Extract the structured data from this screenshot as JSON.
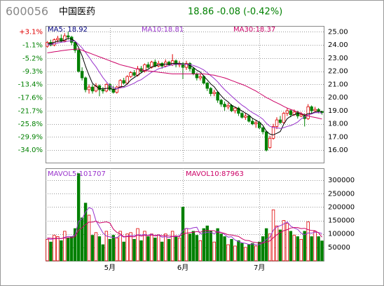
{
  "chart_data": [
    {
      "type": "candlestick",
      "title": "600056",
      "subtitle": "中国医药",
      "quote": "18.86 -0.08 (-0.42%)",
      "up_color": "#e00000",
      "down_color": "#008000",
      "open": [
        23.9,
        24.2,
        24.0,
        24.4,
        24.5,
        24.3,
        24.7,
        24.6,
        24.2,
        23.6,
        22.0,
        21.5,
        20.6,
        20.8,
        20.5,
        20.9,
        20.6,
        20.5,
        21.0,
        20.6,
        20.4,
        20.8,
        21.3,
        21.1,
        21.6,
        21.9,
        21.7,
        22.2,
        22.0,
        22.5,
        22.3,
        22.7,
        22.4,
        22.6,
        22.4,
        22.7,
        22.5,
        22.8,
        22.5,
        22.6,
        22.3,
        22.6,
        22.2,
        21.8,
        21.5,
        21.6,
        21.1,
        20.7,
        20.3,
        20.4,
        19.8,
        19.5,
        19.3,
        19.4,
        19.0,
        19.2,
        18.8,
        18.5,
        18.6,
        18.2,
        18.0,
        18.1,
        17.7,
        17.4,
        16.2,
        16.9,
        17.8,
        18.3,
        18.1,
        18.8,
        19.0,
        18.7,
        18.9,
        18.6,
        18.7,
        18.4,
        19.3,
        19.0,
        19.1,
        18.94
      ],
      "high": [
        24.3,
        24.4,
        24.5,
        24.7,
        24.8,
        24.9,
        25.0,
        24.7,
        24.3,
        23.7,
        22.3,
        21.6,
        21.0,
        21.0,
        21.1,
        21.0,
        20.8,
        21.1,
        21.1,
        20.9,
        20.9,
        21.4,
        21.5,
        21.7,
        22.0,
        22.1,
        22.4,
        22.4,
        22.6,
        22.7,
        22.8,
        22.9,
        22.8,
        22.7,
        22.9,
        22.8,
        23.3,
        22.9,
        22.8,
        22.7,
        22.8,
        22.7,
        22.3,
        21.9,
        21.8,
        21.7,
        21.2,
        20.8,
        20.6,
        20.5,
        19.9,
        19.7,
        19.6,
        19.5,
        19.3,
        19.3,
        18.9,
        18.8,
        18.7,
        18.4,
        18.3,
        18.2,
        17.8,
        17.5,
        17.1,
        18.0,
        18.5,
        18.6,
        18.9,
        19.2,
        19.1,
        19.1,
        19.0,
        18.9,
        18.8,
        19.5,
        19.4,
        19.3,
        19.2,
        19.0
      ],
      "low": [
        23.8,
        23.9,
        23.9,
        24.2,
        24.2,
        24.2,
        24.4,
        24.0,
        23.4,
        21.9,
        21.3,
        20.4,
        20.3,
        20.3,
        20.4,
        20.1,
        20.3,
        20.4,
        20.5,
        20.3,
        20.3,
        20.7,
        21.0,
        21.0,
        21.5,
        21.6,
        21.6,
        21.9,
        21.9,
        22.2,
        22.2,
        22.3,
        22.3,
        22.2,
        22.3,
        22.4,
        22.4,
        22.3,
        22.3,
        21.4,
        22.1,
        22.0,
        21.7,
        21.3,
        21.3,
        21.0,
        20.5,
        20.1,
        20.1,
        19.6,
        19.3,
        19.0,
        19.1,
        18.9,
        18.8,
        18.6,
        18.4,
        18.3,
        18.1,
        17.9,
        17.7,
        17.6,
        17.2,
        15.9,
        16.1,
        16.8,
        17.6,
        18.0,
        18.0,
        18.6,
        18.5,
        18.6,
        18.4,
        18.5,
        17.8,
        18.3,
        18.8,
        18.9,
        18.8,
        18.7
      ],
      "close": [
        24.2,
        24.0,
        24.4,
        24.5,
        24.3,
        24.7,
        24.6,
        24.2,
        23.6,
        22.0,
        21.5,
        20.6,
        20.8,
        20.5,
        20.9,
        20.6,
        20.5,
        21.0,
        20.6,
        20.4,
        20.8,
        21.3,
        21.1,
        21.6,
        21.9,
        21.7,
        22.2,
        22.0,
        22.5,
        22.3,
        22.7,
        22.4,
        22.6,
        22.4,
        22.7,
        22.5,
        22.8,
        22.5,
        22.6,
        22.3,
        22.6,
        22.2,
        21.8,
        21.5,
        21.6,
        21.1,
        20.7,
        20.3,
        20.4,
        19.8,
        19.5,
        19.3,
        19.4,
        19.0,
        19.2,
        18.8,
        18.5,
        18.6,
        18.2,
        18.0,
        18.1,
        17.7,
        17.4,
        16.0,
        16.9,
        17.8,
        18.3,
        18.1,
        18.8,
        19.0,
        18.7,
        18.9,
        18.6,
        18.7,
        18.4,
        19.3,
        19.0,
        19.1,
        18.94,
        18.86
      ],
      "lines": [
        {
          "name": "MA5: 18.92",
          "color": "#000000",
          "values": [
            24.1,
            24.1,
            24.2,
            24.3,
            24.28,
            24.38,
            24.5,
            24.46,
            24.28,
            23.82,
            23.18,
            22.38,
            21.7,
            21.08,
            20.86,
            20.68,
            20.66,
            20.7,
            20.72,
            20.62,
            20.66,
            20.82,
            20.84,
            21.04,
            21.34,
            21.52,
            21.7,
            21.88,
            22.06,
            22.14,
            22.34,
            22.38,
            22.5,
            22.48,
            22.56,
            22.52,
            22.6,
            22.58,
            22.62,
            22.54,
            22.56,
            22.44,
            22.3,
            22.08,
            21.94,
            21.64,
            21.34,
            21.04,
            20.82,
            20.46,
            20.14,
            19.86,
            19.68,
            19.4,
            19.28,
            19.14,
            18.98,
            18.82,
            18.66,
            18.42,
            18.28,
            18.12,
            17.88,
            17.44,
            17.22,
            17.16,
            17.28,
            17.42,
            17.98,
            18.4,
            18.58,
            18.7,
            18.8,
            18.78,
            18.66,
            18.78,
            18.8,
            18.9,
            18.95,
            18.92
          ]
        },
        {
          "name": "MA10:18.81",
          "color": "#9933cc",
          "values": [
            24.0,
            24.05,
            24.1,
            24.15,
            24.2,
            24.24,
            24.3,
            24.33,
            24.29,
            24.05,
            23.78,
            23.44,
            23.08,
            22.68,
            22.34,
            21.93,
            21.52,
            21.2,
            20.9,
            20.74,
            20.67,
            20.74,
            20.77,
            20.87,
            20.98,
            21.09,
            21.26,
            21.36,
            21.55,
            21.74,
            21.93,
            22.04,
            22.19,
            22.27,
            22.35,
            22.43,
            22.49,
            22.54,
            22.55,
            22.55,
            22.54,
            22.52,
            22.44,
            22.35,
            22.24,
            22.1,
            21.89,
            21.67,
            21.45,
            21.2,
            20.89,
            20.6,
            20.36,
            20.11,
            19.87,
            19.64,
            19.42,
            19.25,
            19.03,
            18.85,
            18.71,
            18.55,
            18.35,
            18.05,
            17.82,
            17.72,
            17.7,
            17.65,
            17.71,
            17.81,
            17.87,
            17.99,
            18.14,
            18.38,
            18.53,
            18.68,
            18.75,
            18.85,
            18.86,
            18.81
          ]
        },
        {
          "name": "MA30:18.37",
          "color": "#cc0066",
          "values": [
            23.4,
            23.44,
            23.48,
            23.52,
            23.56,
            23.6,
            23.63,
            23.66,
            23.68,
            23.7,
            23.6,
            23.5,
            23.4,
            23.3,
            23.2,
            23.1,
            23.0,
            22.9,
            22.8,
            22.7,
            22.6,
            22.5,
            22.43,
            22.37,
            22.3,
            22.23,
            22.17,
            22.1,
            22.07,
            22.03,
            22.0,
            21.97,
            21.93,
            21.9,
            21.87,
            21.83,
            21.8,
            21.8,
            21.8,
            21.8,
            21.8,
            21.8,
            21.8,
            21.8,
            21.8,
            21.8,
            21.77,
            21.73,
            21.7,
            21.63,
            21.57,
            21.5,
            21.4,
            21.3,
            21.2,
            21.1,
            21.0,
            20.9,
            20.77,
            20.63,
            20.5,
            20.33,
            20.17,
            20.0,
            19.87,
            19.73,
            19.6,
            19.47,
            19.33,
            19.2,
            19.1,
            19.0,
            18.9,
            18.8,
            18.7,
            18.6,
            18.54,
            18.49,
            18.43,
            18.37
          ]
        }
      ],
      "ylim": [
        15.05,
        25.45
      ],
      "yticks": [
        {
          "value": 25,
          "label": "25.00"
        },
        {
          "value": 24,
          "label": "24.00"
        },
        {
          "value": 23,
          "label": "23.00"
        },
        {
          "value": 22,
          "label": "22.00"
        },
        {
          "value": 21,
          "label": "21.00"
        },
        {
          "value": 20,
          "label": "20.00"
        },
        {
          "value": 19,
          "label": "19.00"
        },
        {
          "value": 18,
          "label": "18.00"
        },
        {
          "value": 17,
          "label": "17.00"
        },
        {
          "value": 16,
          "label": "16.00"
        }
      ],
      "y2lim": [
        -37.91,
        4.99
      ],
      "y2ticks": [
        {
          "value": 3.1,
          "label": "+3.1%"
        },
        {
          "value": -1.1,
          "label": "-1.1%"
        },
        {
          "value": -5.2,
          "label": "-5.2%"
        },
        {
          "value": -9.3,
          "label": "-9.3%"
        },
        {
          "value": -13.4,
          "label": "-13.4%"
        },
        {
          "value": -17.6,
          "label": "-17.6%"
        },
        {
          "value": -21.7,
          "label": "-21.7%"
        },
        {
          "value": -25.8,
          "label": "-25.8%"
        },
        {
          "value": -29.9,
          "label": "-29.9%"
        },
        {
          "value": -34.0,
          "label": "-34.0%"
        }
      ],
      "grid": true
    },
    {
      "type": "bar",
      "categories": [
        null,
        null,
        null,
        null,
        null,
        null,
        null,
        null,
        null,
        null,
        null,
        null,
        null,
        null,
        null,
        null,
        null,
        null,
        "5月",
        null,
        null,
        null,
        null,
        null,
        null,
        null,
        null,
        null,
        null,
        null,
        null,
        null,
        null,
        null,
        null,
        null,
        null,
        null,
        null,
        "6月",
        null,
        null,
        null,
        null,
        null,
        null,
        null,
        null,
        null,
        null,
        null,
        null,
        null,
        null,
        null,
        null,
        null,
        null,
        null,
        null,
        null,
        "7月",
        null,
        null,
        null,
        null,
        null,
        null,
        null,
        null,
        null,
        null,
        null,
        null,
        null,
        null,
        null,
        null,
        null,
        null
      ],
      "values": [
        80000,
        70000,
        95000,
        90000,
        75000,
        110000,
        85000,
        90000,
        120000,
        325000,
        160000,
        215000,
        170000,
        95000,
        105000,
        90000,
        60000,
        110000,
        80000,
        95000,
        85000,
        110000,
        70000,
        100000,
        105000,
        80000,
        120000,
        75000,
        110000,
        90000,
        100000,
        85000,
        95000,
        70000,
        100000,
        80000,
        110000,
        90000,
        85000,
        200000,
        120000,
        100000,
        110000,
        95000,
        75000,
        120000,
        130000,
        110000,
        70000,
        120000,
        100000,
        90000,
        60000,
        80000,
        55000,
        75000,
        65000,
        50000,
        60000,
        65000,
        55000,
        70000,
        90000,
        120000,
        100000,
        190000,
        130000,
        115000,
        150000,
        140000,
        110000,
        95000,
        90000,
        80000,
        110000,
        145000,
        90000,
        110000,
        90000,
        74000
      ],
      "lines": [
        {
          "name": "MAVOL5:101707",
          "color": "#9933cc",
          "values": [
            82000,
            80000,
            82000,
            84000,
            82000,
            88000,
            91000,
            90000,
            96000,
            146000,
            156000,
            182000,
            198000,
            193000,
            149000,
            127000,
            104000,
            92000,
            89000,
            87000,
            86000,
            96000,
            88000,
            92000,
            94000,
            93000,
            97000,
            96000,
            98000,
            95000,
            99000,
            92000,
            96000,
            88000,
            90000,
            86000,
            91000,
            90000,
            93000,
            113000,
            121000,
            119000,
            123000,
            125000,
            100000,
            104000,
            106000,
            106000,
            101000,
            110000,
            106000,
            98000,
            88000,
            90000,
            77000,
            72000,
            67000,
            65000,
            61000,
            63000,
            59000,
            60000,
            68000,
            80000,
            87000,
            114000,
            126000,
            131000,
            137000,
            145000,
            129000,
            122000,
            117000,
            103000,
            97000,
            104000,
            103000,
            107000,
            105000,
            101707
          ]
        },
        {
          "name": "MAVOL10:87963",
          "color": "#cc0066",
          "values": [
            85000,
            84000,
            83000,
            83000,
            83000,
            85000,
            86000,
            86000,
            90000,
            114000,
            123000,
            135000,
            144000,
            144000,
            148000,
            141000,
            143000,
            145000,
            141000,
            118000,
            106000,
            100000,
            90000,
            90000,
            90000,
            89000,
            96000,
            92000,
            95000,
            94000,
            96000,
            94000,
            97000,
            93000,
            94000,
            92000,
            91000,
            93000,
            90000,
            101000,
            103000,
            105000,
            106000,
            109000,
            106000,
            112000,
            113000,
            112000,
            112000,
            105000,
            105000,
            102000,
            97000,
            96000,
            93000,
            91000,
            82000,
            76000,
            75000,
            70000,
            68000,
            66000,
            66000,
            70000,
            74000,
            86000,
            97000,
            105000,
            112000,
            116000,
            122000,
            124000,
            124000,
            120000,
            121000,
            116000,
            113000,
            112000,
            104000,
            87963
          ]
        }
      ],
      "ylim": [
        0,
        345000
      ],
      "yticks": [
        50000,
        100000,
        150000,
        200000,
        250000,
        300000
      ],
      "grid": true
    }
  ]
}
